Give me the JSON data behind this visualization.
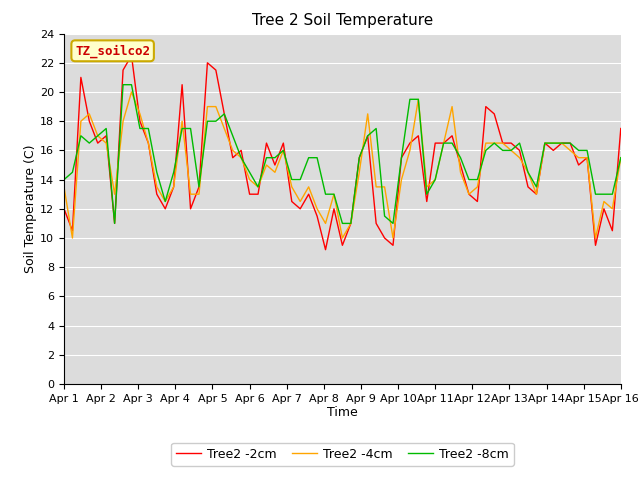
{
  "title": "Tree 2 Soil Temperature",
  "xlabel": "Time",
  "ylabel": "Soil Temperature (C)",
  "ylim": [
    0,
    24
  ],
  "yticks": [
    0,
    2,
    4,
    6,
    8,
    10,
    12,
    14,
    16,
    18,
    20,
    22,
    24
  ],
  "xtick_labels": [
    "Apr 1",
    "Apr 2",
    "Apr 3",
    "Apr 4",
    "Apr 5",
    "Apr 6",
    "Apr 7",
    "Apr 8",
    "Apr 9",
    "Apr 10",
    "Apr 11",
    "Apr 12",
    "Apr 13",
    "Apr 14",
    "Apr 15",
    "Apr 16"
  ],
  "annotation_text": "TZ_soilco2",
  "legend_labels": [
    "Tree2 -2cm",
    "Tree2 -4cm",
    "Tree2 -8cm"
  ],
  "colors": {
    "2cm": "#FF0000",
    "4cm": "#FFA500",
    "8cm": "#00BB00"
  },
  "background_color": "#DCDCDC",
  "line_width": 1.0,
  "title_fontsize": 11,
  "label_fontsize": 9,
  "tick_fontsize": 8,
  "legend_fontsize": 9,
  "tree2_2cm": [
    12.0,
    10.5,
    21.0,
    18.0,
    16.5,
    17.0,
    11.0,
    21.5,
    22.5,
    18.0,
    16.5,
    13.0,
    12.0,
    13.5,
    20.5,
    12.0,
    13.5,
    22.0,
    21.5,
    18.5,
    15.5,
    16.0,
    13.0,
    13.0,
    16.5,
    15.0,
    16.5,
    12.5,
    12.0,
    13.0,
    11.5,
    9.2,
    12.0,
    9.5,
    11.0,
    15.5,
    17.0,
    11.0,
    10.0,
    9.5,
    15.5,
    16.5,
    17.0,
    12.5,
    16.5,
    16.5,
    17.0,
    15.0,
    13.0,
    12.5,
    19.0,
    18.5,
    16.5,
    16.5,
    16.0,
    13.5,
    13.0,
    16.5,
    16.0,
    16.5,
    16.5,
    15.0,
    15.5,
    9.5,
    12.0,
    10.5,
    17.5
  ],
  "tree2_4cm": [
    13.5,
    10.0,
    18.0,
    18.5,
    17.0,
    16.5,
    13.0,
    18.0,
    20.0,
    18.5,
    16.5,
    13.5,
    12.5,
    13.5,
    18.0,
    13.0,
    13.0,
    19.0,
    19.0,
    17.5,
    16.0,
    15.5,
    14.0,
    13.5,
    15.0,
    14.5,
    16.0,
    13.5,
    12.5,
    13.5,
    12.0,
    11.0,
    13.0,
    10.0,
    11.0,
    14.5,
    18.5,
    13.5,
    13.5,
    10.0,
    14.0,
    16.0,
    19.5,
    13.5,
    14.0,
    16.5,
    19.0,
    14.5,
    13.0,
    13.5,
    16.5,
    16.5,
    16.5,
    16.0,
    15.5,
    14.5,
    13.0,
    16.5,
    16.5,
    16.5,
    16.0,
    15.5,
    15.5,
    10.0,
    12.5,
    12.0,
    15.5
  ],
  "tree2_8cm": [
    14.0,
    14.5,
    17.0,
    16.5,
    17.0,
    17.5,
    11.0,
    20.5,
    20.5,
    17.5,
    17.5,
    14.5,
    12.5,
    14.5,
    17.5,
    17.5,
    13.5,
    18.0,
    18.0,
    18.5,
    17.0,
    15.5,
    14.5,
    13.5,
    15.5,
    15.5,
    16.0,
    14.0,
    14.0,
    15.5,
    15.5,
    13.0,
    13.0,
    11.0,
    11.0,
    15.5,
    17.0,
    17.5,
    11.5,
    11.0,
    15.5,
    19.5,
    19.5,
    13.0,
    14.0,
    16.5,
    16.5,
    15.5,
    14.0,
    14.0,
    16.0,
    16.5,
    16.0,
    16.0,
    16.5,
    14.5,
    13.5,
    16.5,
    16.5,
    16.5,
    16.5,
    16.0,
    16.0,
    13.0,
    13.0,
    13.0,
    15.5
  ]
}
